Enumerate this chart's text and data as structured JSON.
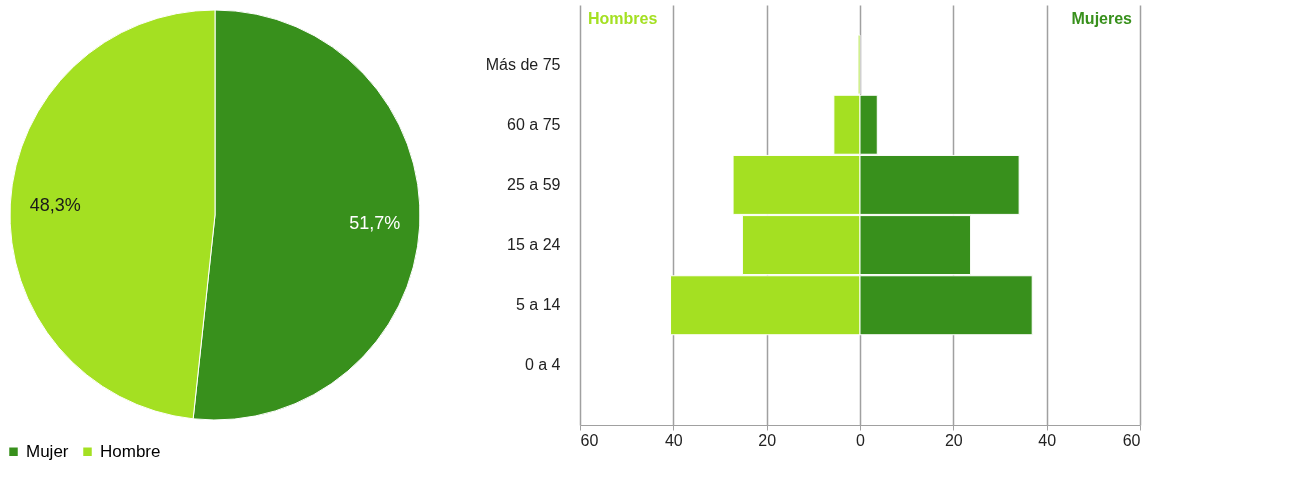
{
  "chart_data": [
    {
      "type": "pie",
      "categories": [
        "Mujer",
        "Hombre"
      ],
      "values": [
        51.7,
        48.3
      ],
      "colors": [
        "#38901c",
        "#a4e022"
      ],
      "value_labels": [
        "51,7%",
        "48,3%"
      ],
      "legend": "bottom"
    },
    {
      "type": "bar",
      "orientation": "horizontal",
      "categories": [
        "Más de 75",
        "60 a 75",
        "25 a 59",
        "15 a 24",
        "5 a 14",
        "0 a 4"
      ],
      "series": [
        {
          "name": "Hombres",
          "color": "#a4e022",
          "values": [
            -0.4,
            -5.6,
            -27.2,
            -25.2,
            -40.6,
            null
          ]
        },
        {
          "name": "Mujeres",
          "color": "#38901c",
          "values": [
            null,
            3.7,
            34.1,
            23.7,
            36.9,
            null
          ]
        }
      ],
      "stacked": true,
      "legend": "top",
      "xlim": [
        -60,
        60
      ],
      "xticks": [
        {
          "value": -60,
          "label": "60"
        },
        {
          "value": -40,
          "label": "40"
        },
        {
          "value": -20,
          "label": "20"
        },
        0,
        20,
        40,
        60
      ],
      "grid": "x"
    }
  ]
}
